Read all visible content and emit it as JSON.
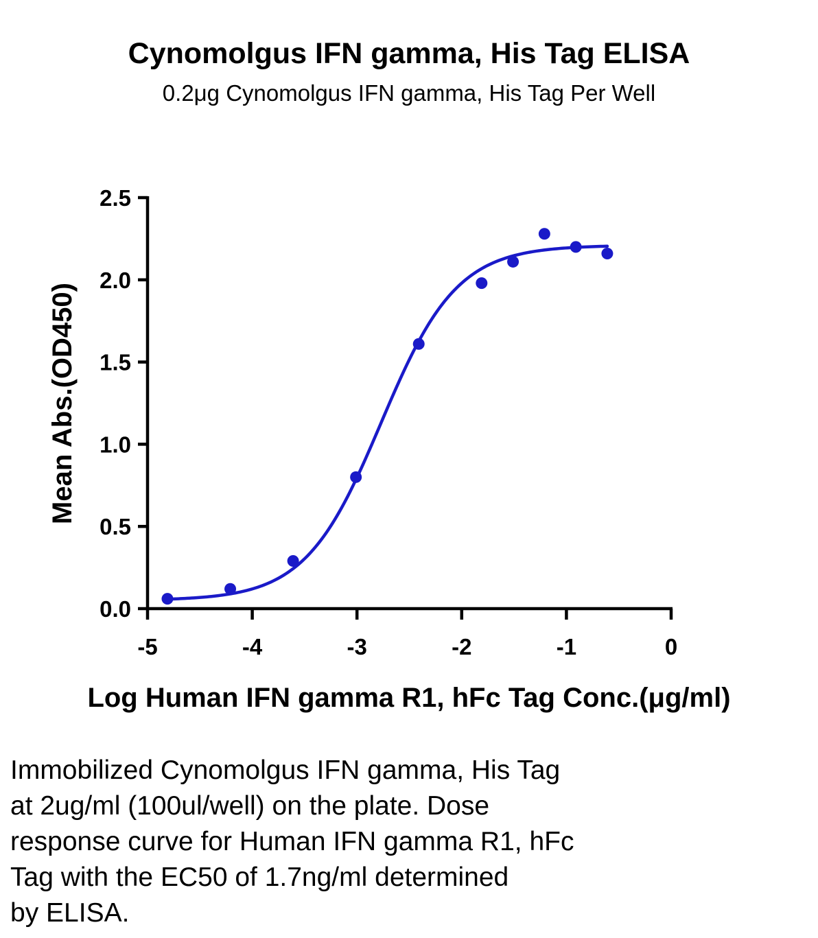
{
  "chart_data": {
    "type": "scatter",
    "title": "Cynomolgus IFN gamma, His Tag ELISA",
    "subtitle": "0.2μg Cynomolgus IFN gamma, His Tag Per Well",
    "xlabel": "Log Human IFN gamma R1, hFc Tag Conc.(μg/ml)",
    "ylabel": "Mean Abs.(OD450)",
    "xlim": [
      -5,
      0
    ],
    "ylim": [
      0,
      2.5
    ],
    "x_ticks": [
      "-5",
      "-4",
      "-3",
      "-2",
      "-1",
      "0"
    ],
    "y_ticks": [
      "0.0",
      "0.5",
      "1.0",
      "1.5",
      "2.0",
      "2.5"
    ],
    "grid": false,
    "legend": "none",
    "series": [
      {
        "color": "#1a1ac8",
        "marker": "circle",
        "x": [
          -4.81,
          -4.21,
          -3.61,
          -3.01,
          -2.41,
          -1.81,
          -1.51,
          -1.21,
          -0.91,
          -0.61
        ],
        "y": [
          0.06,
          0.12,
          0.29,
          0.8,
          1.61,
          1.98,
          2.11,
          2.28,
          2.2,
          2.16
        ]
      }
    ],
    "fit": {
      "model": "4PL",
      "color": "#1a1ac8",
      "bottom": 0.05,
      "top": 2.21,
      "log_ec50": -2.77,
      "hill_slope": 1.2,
      "x_range": [
        -4.81,
        -0.61
      ]
    }
  },
  "caption": {
    "lines": [
      "Immobilized Cynomolgus IFN gamma, His Tag",
      "at 2ug/ml (100ul/well) on the plate. Dose",
      "response curve for Human IFN gamma R1, hFc",
      "Tag with the EC50 of 1.7ng/ml determined",
      "by ELISA."
    ]
  }
}
